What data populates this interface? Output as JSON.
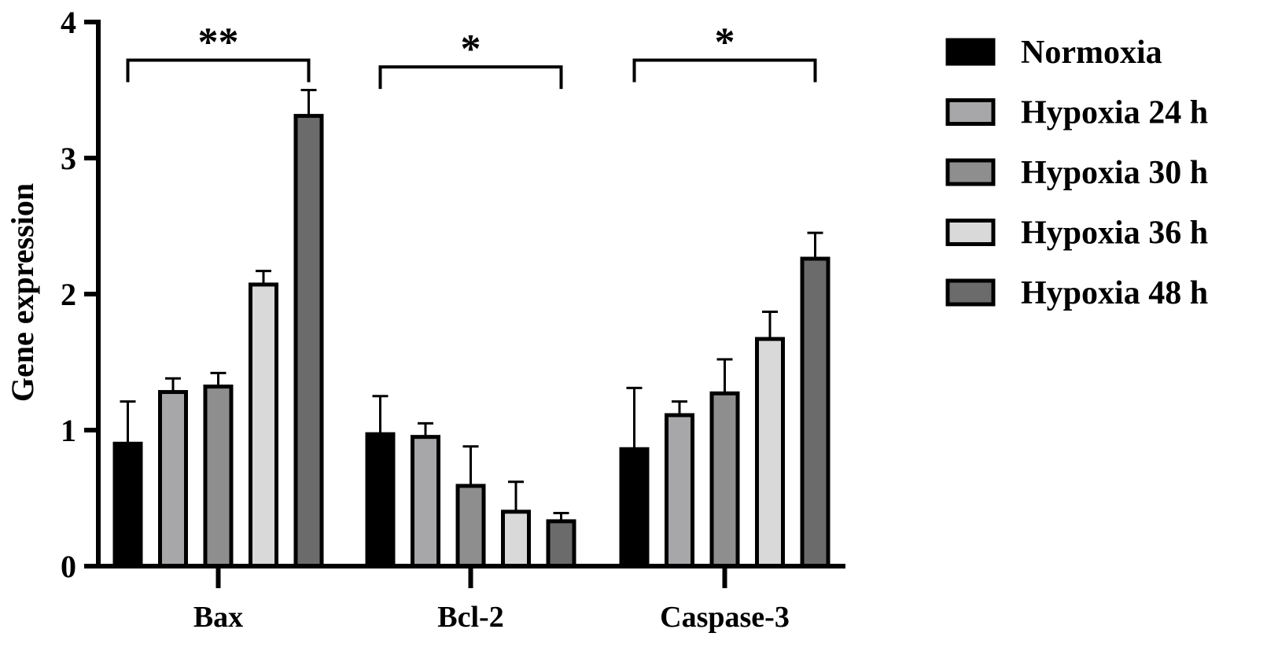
{
  "chart_data": {
    "type": "bar",
    "categories": [
      "Bax",
      "Bcl-2",
      "Caspase-3"
    ],
    "ylabel": "Gene expression",
    "xlabel": "",
    "ylim": [
      0,
      4
    ],
    "yticks": [
      "0",
      "1",
      "2",
      "3",
      "4"
    ],
    "series": [
      {
        "name": "Normoxia",
        "color": "#000000",
        "values": [
          0.9,
          0.97,
          0.86
        ],
        "errors": [
          0.31,
          0.28,
          0.45
        ]
      },
      {
        "name": "Hypoxia 24 h",
        "color": "#a7a7aa",
        "values": [
          1.28,
          0.95,
          1.11
        ],
        "errors": [
          0.1,
          0.1,
          0.1
        ]
      },
      {
        "name": "Hypoxia 30 h",
        "color": "#8e8e8e",
        "values": [
          1.32,
          0.59,
          1.27
        ],
        "errors": [
          0.1,
          0.29,
          0.25
        ]
      },
      {
        "name": "Hypoxia 36 h",
        "color": "#d9d9d9",
        "values": [
          2.07,
          0.4,
          1.67
        ],
        "errors": [
          0.1,
          0.22,
          0.2
        ]
      },
      {
        "name": "Hypoxia 48 h",
        "color": "#6b6b6b",
        "values": [
          3.31,
          0.33,
          2.26
        ],
        "errors": [
          0.19,
          0.06,
          0.19
        ]
      }
    ],
    "significance": [
      {
        "category": "Bax",
        "label": "**",
        "level": 3.72
      },
      {
        "category": "Bcl-2",
        "label": "*",
        "level": 3.67
      },
      {
        "category": "Caspase-3",
        "label": "*",
        "level": 3.72
      }
    ],
    "legend_position": "right",
    "grid": false
  }
}
